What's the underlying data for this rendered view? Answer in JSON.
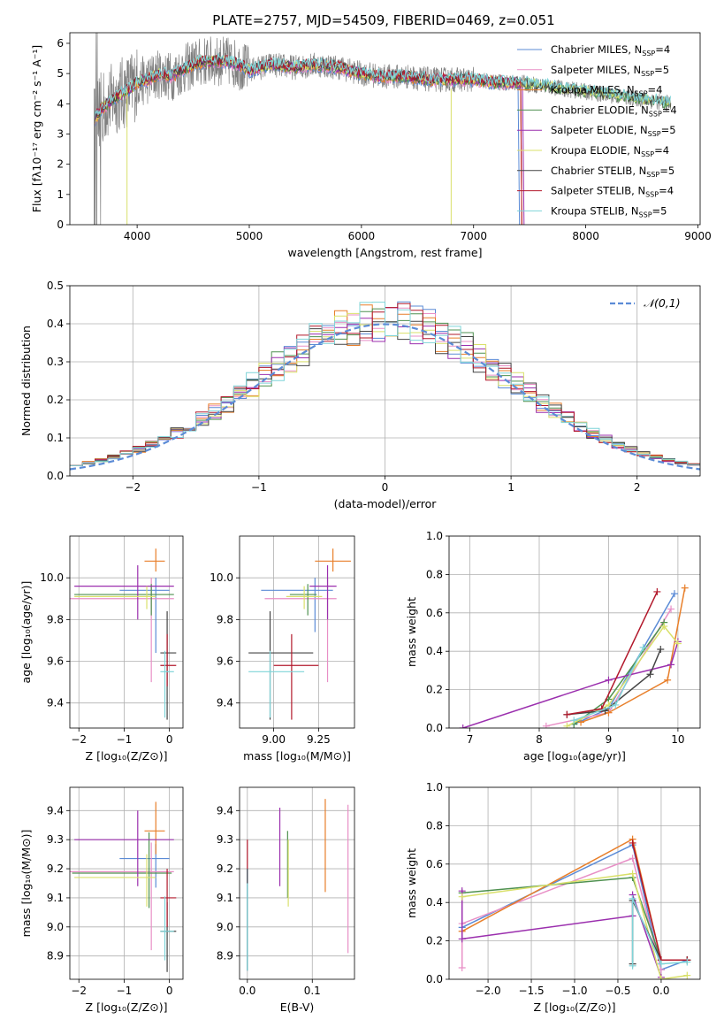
{
  "figure": {
    "title": "PLATE=2757, MJD=54509, FIBERID=0469, z=0.051"
  },
  "colors": {
    "Chabrier MILES": "#5b8bd6",
    "Salpeter MILES": "#e88fc6",
    "Kroupa MILES": "#e87f2a",
    "Chabrier ELODIE": "#4f9150",
    "Salpeter ELODIE": "#9b2fae",
    "Kroupa ELODIE": "#d9e06a",
    "Chabrier STELIB": "#444444",
    "Salpeter STELIB": "#b2182b",
    "Kroupa STELIB": "#7fd4d8",
    "observed": "#808080",
    "gaussian": "#5b8bd6"
  },
  "chart_data": [
    {
      "id": "spectrum",
      "type": "line",
      "xlabel": "wavelength [Angstrom, rest frame]",
      "ylabel": "Flux [fλ10⁻¹⁷ erg cm⁻² s⁻¹ A⁻¹]",
      "xlim": [
        3400,
        9020
      ],
      "ylim": [
        0,
        6.35
      ],
      "xticks": [
        4000,
        5000,
        6000,
        7000,
        8000,
        9000
      ],
      "yticks": [
        0,
        1,
        2,
        3,
        4,
        5,
        6
      ],
      "grid": false,
      "legend_position": "top-right",
      "legend": [
        {
          "name": "Chabrier MILES",
          "nssp": "4"
        },
        {
          "name": "Salpeter MILES",
          "nssp": "5"
        },
        {
          "name": "Kroupa MILES",
          "nssp": "4"
        },
        {
          "name": "Chabrier ELODIE",
          "nssp": "4"
        },
        {
          "name": "Salpeter ELODIE",
          "nssp": "5"
        },
        {
          "name": "Kroupa ELODIE",
          "nssp": "4"
        },
        {
          "name": "Chabrier STELIB",
          "nssp": "5"
        },
        {
          "name": "Salpeter STELIB",
          "nssp": "4"
        },
        {
          "name": "Kroupa STELIB",
          "nssp": "5"
        }
      ],
      "observed_range": [
        3620,
        8760
      ],
      "continuum": [
        [
          3620,
          3.5
        ],
        [
          3700,
          3.9
        ],
        [
          3800,
          4.2
        ],
        [
          3900,
          4.4
        ],
        [
          4000,
          4.7
        ],
        [
          4100,
          4.8
        ],
        [
          4200,
          5.0
        ],
        [
          4300,
          4.9
        ],
        [
          4400,
          5.1
        ],
        [
          4500,
          5.3
        ],
        [
          4600,
          5.4
        ],
        [
          4700,
          5.4
        ],
        [
          4800,
          5.4
        ],
        [
          4900,
          5.3
        ],
        [
          5000,
          5.1
        ],
        [
          5200,
          5.3
        ],
        [
          5400,
          5.2
        ],
        [
          5600,
          5.3
        ],
        [
          5800,
          5.2
        ],
        [
          6000,
          5.0
        ],
        [
          6200,
          4.9
        ],
        [
          6400,
          4.9
        ],
        [
          6600,
          4.8
        ],
        [
          6800,
          4.8
        ],
        [
          7000,
          4.8
        ],
        [
          7200,
          4.7
        ],
        [
          7400,
          4.7
        ],
        [
          7600,
          4.6
        ],
        [
          7800,
          4.5
        ],
        [
          8000,
          4.4
        ],
        [
          8200,
          4.3
        ],
        [
          8400,
          4.2
        ],
        [
          8600,
          4.1
        ],
        [
          8760,
          4.0
        ]
      ]
    },
    {
      "id": "residuals",
      "type": "histogram",
      "xlabel": "(data-model)/error",
      "ylabel": "Normed distribution",
      "xlim": [
        -2.5,
        2.5
      ],
      "ylim": [
        0,
        0.5
      ],
      "xticks": [
        -2,
        -1,
        0,
        1,
        2
      ],
      "yticks": [
        0.0,
        0.1,
        0.2,
        0.3,
        0.4,
        0.5
      ],
      "grid": true,
      "legend_position": "top-right",
      "gaussian_label": "𝒩(0,1)",
      "bin_width": 0.1
    },
    {
      "id": "age-vs-Z",
      "type": "errorbar",
      "xlabel": "Z [log₁₀(Z/Z⊙)]",
      "ylabel": "age  [log₁₀(age/yr)]",
      "xlim": [
        -2.2,
        0.3
      ],
      "ylim": [
        9.28,
        10.2
      ],
      "xticks": [
        -2,
        -1,
        0
      ],
      "yticks": [
        9.4,
        9.6,
        9.8,
        10.0
      ],
      "grid": true,
      "points": [
        {
          "series": "Chabrier MILES",
          "x": -0.3,
          "xerr": [
            0.8,
            0.3
          ],
          "y": 9.94,
          "yerr": [
            0.3,
            0.06
          ]
        },
        {
          "series": "Salpeter MILES",
          "x": -0.4,
          "xerr": [
            1.9,
            0.5
          ],
          "y": 9.9,
          "yerr": [
            0.4,
            0.1
          ]
        },
        {
          "series": "Kroupa MILES",
          "x": -0.3,
          "xerr": [
            0.25,
            0.2
          ],
          "y": 10.08,
          "yerr": [
            0.05,
            0.06
          ]
        },
        {
          "series": "Chabrier ELODIE",
          "x": -0.4,
          "xerr": [
            1.7,
            0.5
          ],
          "y": 9.92,
          "yerr": [
            0.1,
            0.05
          ]
        },
        {
          "series": "Salpeter ELODIE",
          "x": -0.7,
          "xerr": [
            1.4,
            0.8
          ],
          "y": 9.96,
          "yerr": [
            0.16,
            0.1
          ]
        },
        {
          "series": "Kroupa ELODIE",
          "x": -0.5,
          "xerr": [
            1.6,
            0.2
          ],
          "y": 9.91,
          "yerr": [
            0.06,
            0.05
          ]
        },
        {
          "series": "Chabrier STELIB",
          "x": -0.05,
          "xerr": [
            0.15,
            0.2
          ],
          "y": 9.64,
          "yerr": [
            0.32,
            0.2
          ]
        },
        {
          "series": "Salpeter STELIB",
          "x": -0.05,
          "xerr": [
            0.15,
            0.2
          ],
          "y": 9.58,
          "yerr": [
            0.1,
            0.15
          ]
        },
        {
          "series": "Kroupa STELIB",
          "x": -0.1,
          "xerr": [
            0.1,
            0.2
          ],
          "y": 9.55,
          "yerr": [
            0.22,
            0.1
          ]
        }
      ]
    },
    {
      "id": "age-vs-mass",
      "type": "errorbar",
      "xlabel": "mass [log₁₀(M/M⊙)]",
      "ylabel": "",
      "xlim": [
        8.81,
        9.45
      ],
      "ylim": [
        9.28,
        10.2
      ],
      "xticks": [
        9.0,
        9.25
      ],
      "yticks": [
        9.4,
        9.6,
        9.8,
        10.0
      ],
      "grid": true,
      "points": [
        {
          "series": "Chabrier MILES",
          "x": 9.23,
          "xerr": [
            0.3,
            0.1
          ],
          "y": 9.94,
          "yerr": [
            0.2,
            0.06
          ]
        },
        {
          "series": "Salpeter MILES",
          "x": 9.3,
          "xerr": [
            0.35,
            0.05
          ],
          "y": 9.9,
          "yerr": [
            0.4,
            0.1
          ]
        },
        {
          "series": "Kroupa MILES",
          "x": 9.33,
          "xerr": [
            0.1,
            0.1
          ],
          "y": 10.08,
          "yerr": [
            0.05,
            0.06
          ]
        },
        {
          "series": "Chabrier ELODIE",
          "x": 9.19,
          "xerr": [
            0.1,
            0.05
          ],
          "y": 9.92,
          "yerr": [
            0.1,
            0.05
          ]
        },
        {
          "series": "Salpeter ELODIE",
          "x": 9.3,
          "xerr": [
            0.1,
            0.05
          ],
          "y": 9.96,
          "yerr": [
            0.16,
            0.1
          ]
        },
        {
          "series": "Kroupa ELODIE",
          "x": 9.17,
          "xerr": [
            0.1,
            0.1
          ],
          "y": 9.91,
          "yerr": [
            0.06,
            0.05
          ]
        },
        {
          "series": "Chabrier STELIB",
          "x": 8.98,
          "xerr": [
            0.12,
            0.24
          ],
          "y": 9.64,
          "yerr": [
            0.32,
            0.2
          ]
        },
        {
          "series": "Salpeter STELIB",
          "x": 9.1,
          "xerr": [
            0.1,
            0.15
          ],
          "y": 9.58,
          "yerr": [
            0.26,
            0.15
          ]
        },
        {
          "series": "Kroupa STELIB",
          "x": 8.98,
          "xerr": [
            0.12,
            0.19
          ],
          "y": 9.55,
          "yerr": [
            0.22,
            0.1
          ]
        }
      ]
    },
    {
      "id": "mass-weight-vs-age",
      "type": "line",
      "xlabel": "age  [log₁₀(age/yr)]",
      "ylabel": "mass weight",
      "xlim": [
        6.7,
        10.32
      ],
      "ylim": [
        0,
        1.0
      ],
      "xticks": [
        7,
        8,
        9,
        10
      ],
      "yticks": [
        0.0,
        0.2,
        0.4,
        0.6,
        0.8,
        1.0
      ],
      "grid": true,
      "series": [
        {
          "name": "Chabrier MILES",
          "x": [
            8.5,
            9.0,
            9.95
          ],
          "y": [
            0.02,
            0.1,
            0.7
          ]
        },
        {
          "name": "Salpeter MILES",
          "x": [
            8.1,
            9.0,
            9.9
          ],
          "y": [
            0.01,
            0.08,
            0.62
          ]
        },
        {
          "name": "Kroupa MILES",
          "x": [
            8.6,
            9.0,
            9.85,
            10.1
          ],
          "y": [
            0.03,
            0.08,
            0.25,
            0.73
          ]
        },
        {
          "name": "Chabrier ELODIE",
          "x": [
            8.5,
            9.0,
            9.8
          ],
          "y": [
            0.02,
            0.15,
            0.55
          ]
        },
        {
          "name": "Salpeter ELODIE",
          "x": [
            6.9,
            9.0,
            9.9,
            10.0
          ],
          "y": [
            0.0,
            0.25,
            0.33,
            0.45
          ]
        },
        {
          "name": "Kroupa ELODIE",
          "x": [
            8.4,
            9.0,
            9.8,
            10.0
          ],
          "y": [
            0.01,
            0.12,
            0.53,
            0.44
          ]
        },
        {
          "name": "Chabrier STELIB",
          "x": [
            8.4,
            8.95,
            9.6,
            9.75
          ],
          "y": [
            0.07,
            0.09,
            0.28,
            0.41
          ]
        },
        {
          "name": "Salpeter STELIB",
          "x": [
            8.4,
            8.9,
            9.7
          ],
          "y": [
            0.07,
            0.1,
            0.71
          ]
        },
        {
          "name": "Kroupa STELIB",
          "x": [
            8.5,
            9.1,
            9.5
          ],
          "y": [
            0.04,
            0.12,
            0.42
          ]
        }
      ]
    },
    {
      "id": "mass-vs-Z",
      "type": "errorbar",
      "xlabel": "Z [log₁₀(Z/Z⊙)]",
      "ylabel": "mass [log₁₀(M/M⊙)]",
      "xlim": [
        -2.2,
        0.3
      ],
      "ylim": [
        8.82,
        9.48
      ],
      "xticks": [
        -2,
        -1,
        0
      ],
      "yticks": [
        8.9,
        9.0,
        9.1,
        9.2,
        9.3,
        9.4
      ],
      "grid": true,
      "points": [
        {
          "series": "Chabrier MILES",
          "x": -0.3,
          "xerr": [
            0.8,
            0.3
          ],
          "y": 9.235,
          "yerr": [
            0.1,
            0.05
          ]
        },
        {
          "series": "Salpeter MILES",
          "x": -0.4,
          "xerr": [
            1.9,
            0.5
          ],
          "y": 9.19,
          "yerr": [
            0.27,
            0.1
          ]
        },
        {
          "series": "Kroupa MILES",
          "x": -0.3,
          "xerr": [
            0.25,
            0.2
          ],
          "y": 9.33,
          "yerr": [
            0.08,
            0.1
          ]
        },
        {
          "series": "Chabrier ELODIE",
          "x": -0.45,
          "xerr": [
            1.7,
            0.5
          ],
          "y": 9.185,
          "yerr": [
            0.12,
            0.14
          ]
        },
        {
          "series": "Salpeter ELODIE",
          "x": -0.7,
          "xerr": [
            1.4,
            0.8
          ],
          "y": 9.3,
          "yerr": [
            0.16,
            0.1
          ]
        },
        {
          "series": "Kroupa ELODIE",
          "x": -0.5,
          "xerr": [
            1.6,
            0.2
          ],
          "y": 9.17,
          "yerr": [
            0.1,
            0.08
          ]
        },
        {
          "series": "Chabrier STELIB",
          "x": -0.05,
          "xerr": [
            0.15,
            0.2
          ],
          "y": 8.985,
          "yerr": [
            0.14,
            0.1
          ]
        },
        {
          "series": "Salpeter STELIB",
          "x": -0.05,
          "xerr": [
            0.15,
            0.2
          ],
          "y": 9.1,
          "yerr": [
            0.1,
            0.1
          ]
        },
        {
          "series": "Kroupa STELIB",
          "x": -0.1,
          "xerr": [
            0.1,
            0.2
          ],
          "y": 8.985,
          "yerr": [
            0.1,
            0.12
          ]
        }
      ]
    },
    {
      "id": "mass-vs-EBV",
      "type": "errorbar",
      "xlabel": "E(B-V)",
      "ylabel": "",
      "xlim": [
        -0.012,
        0.165
      ],
      "ylim": [
        8.82,
        9.48
      ],
      "xticks": [
        0.0,
        0.1
      ],
      "yticks": [
        8.9,
        9.0,
        9.1,
        9.2,
        9.3,
        9.4
      ],
      "grid": true,
      "points": [
        {
          "series": "Chabrier MILES",
          "x": 0.0,
          "y": 9.05,
          "yerr": [
            0.2,
            0.15
          ]
        },
        {
          "series": "Salpeter MILES",
          "x": 0.155,
          "y": 9.17,
          "yerr": [
            0.26,
            0.25
          ]
        },
        {
          "series": "Kroupa MILES",
          "x": 0.12,
          "y": 9.28,
          "yerr": [
            0.16,
            0.16
          ]
        },
        {
          "series": "Chabrier ELODIE",
          "x": 0.062,
          "y": 9.2,
          "yerr": [
            0.1,
            0.13
          ]
        },
        {
          "series": "Salpeter ELODIE",
          "x": 0.05,
          "y": 9.28,
          "yerr": [
            0.14,
            0.13
          ]
        },
        {
          "series": "Kroupa ELODIE",
          "x": 0.063,
          "y": 9.18,
          "yerr": [
            0.11,
            0.12
          ]
        },
        {
          "series": "Chabrier STELIB",
          "x": 0.0,
          "y": 9.0,
          "yerr": [
            0.15,
            0.2
          ]
        },
        {
          "series": "Salpeter STELIB",
          "x": 0.0,
          "y": 9.25,
          "yerr": [
            0.05,
            0.05
          ]
        },
        {
          "series": "Kroupa STELIB",
          "x": 0.0,
          "y": 9.0,
          "yerr": [
            0.15,
            0.15
          ]
        }
      ]
    },
    {
      "id": "mass-weight-vs-Z",
      "type": "line",
      "xlabel": "Z [log₁₀(Z/Z⊙)]",
      "ylabel": "mass weight",
      "xlim": [
        -2.45,
        0.45
      ],
      "ylim": [
        0,
        1.0
      ],
      "xticks": [
        -2.0,
        -1.5,
        -1.0,
        -0.5,
        0.0
      ],
      "yticks": [
        0.0,
        0.2,
        0.4,
        0.6,
        0.8,
        1.0
      ],
      "grid": true,
      "series": [
        {
          "name": "Chabrier MILES",
          "x": [
            -2.3,
            -0.33,
            0.0,
            0.3
          ],
          "y": [
            0.27,
            0.7,
            0.05,
            0.1
          ]
        },
        {
          "name": "Salpeter MILES",
          "x": [
            -2.3,
            -2.3,
            -0.33,
            0.0
          ],
          "y": [
            0.06,
            0.29,
            0.63,
            0.05
          ]
        },
        {
          "name": "Kroupa MILES",
          "x": [
            -2.3,
            -0.33,
            0.0,
            0.3
          ],
          "y": [
            0.25,
            0.73,
            0.1,
            0.1
          ]
        },
        {
          "name": "Chabrier ELODIE",
          "x": [
            -2.3,
            -0.33,
            0.0,
            0.3
          ],
          "y": [
            0.45,
            0.53,
            0.1,
            0.1
          ]
        },
        {
          "name": "Salpeter ELODIE",
          "x": [
            -2.3,
            -2.3,
            -0.33,
            -0.33,
            0.0
          ],
          "y": [
            0.46,
            0.21,
            0.33,
            0.44,
            0.01
          ]
        },
        {
          "name": "Kroupa ELODIE",
          "x": [
            -2.3,
            -0.33,
            0.0,
            0.3
          ],
          "y": [
            0.43,
            0.55,
            0.0,
            0.02
          ]
        },
        {
          "name": "Chabrier STELIB",
          "x": [
            -0.33,
            -0.33,
            0.0,
            0.3
          ],
          "y": [
            0.08,
            0.41,
            0.1,
            0.1
          ]
        },
        {
          "name": "Salpeter STELIB",
          "x": [
            -0.33,
            0.0,
            0.3
          ],
          "y": [
            0.71,
            0.1,
            0.1
          ]
        },
        {
          "name": "Kroupa STELIB",
          "x": [
            -0.33,
            -0.33,
            0.0,
            0.3
          ],
          "y": [
            0.07,
            0.42,
            0.08,
            0.09
          ]
        }
      ]
    }
  ]
}
